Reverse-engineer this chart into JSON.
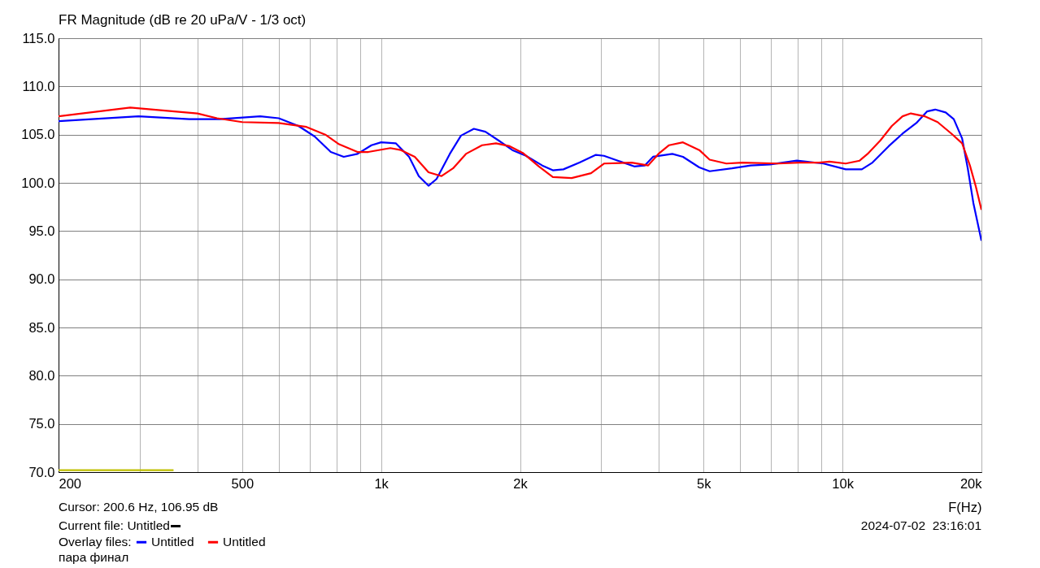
{
  "chart_data": {
    "type": "line",
    "title": "FR Magnitude (dB re 20 uPa/V - 1/3 oct)",
    "xlabel": "F(Hz)",
    "legend_title": "Overlay files:",
    "legend": "bottom left",
    "grid": true,
    "log": "x",
    "xlim": [
      200,
      20000
    ],
    "xticks": [
      200,
      {
        "value": 300,
        "label": null
      },
      {
        "value": 400,
        "label": null
      },
      500,
      {
        "value": 600,
        "label": null
      },
      {
        "value": 700,
        "label": null
      },
      {
        "value": 800,
        "label": null
      },
      {
        "value": 900,
        "label": null
      },
      {
        "value": 1000,
        "label": "1k"
      },
      {
        "value": 2000,
        "label": "2k"
      },
      {
        "value": 3000,
        "label": null
      },
      {
        "value": 4000,
        "label": null
      },
      {
        "value": 5000,
        "label": "5k"
      },
      {
        "value": 6000,
        "label": null
      },
      {
        "value": 7000,
        "label": null
      },
      {
        "value": 8000,
        "label": null
      },
      {
        "value": 9000,
        "label": null
      },
      {
        "value": 10000,
        "label": "10k"
      },
      {
        "value": 20000,
        "label": "20k"
      }
    ],
    "ylim": [
      70,
      115
    ],
    "yticks": [
      {
        "value": 70,
        "label": "70.0"
      },
      {
        "value": 75,
        "label": "75.0"
      },
      {
        "value": 80,
        "label": "80.0"
      },
      {
        "value": 85,
        "label": "85.0"
      },
      {
        "value": 90,
        "label": "90.0"
      },
      {
        "value": 95,
        "label": "95.0"
      },
      {
        "value": 100,
        "label": "100.0"
      },
      {
        "value": 105,
        "label": "105.0"
      },
      {
        "value": 110,
        "label": "110.0"
      },
      {
        "value": 115,
        "label": "115.0"
      }
    ],
    "annotations": [
      "Cursor: 200.6 Hz, 106.95 dB",
      "Current file: Untitled",
      "пара финал",
      "2024-07-02  23:16:01"
    ],
    "series": [
      {
        "name": "Untitled",
        "color": "#0000ff",
        "x": [
          200,
          298,
          384,
          447,
          547,
          600,
          662,
          718,
          778,
          830,
          889,
          953,
          1000,
          1076,
          1150,
          1207,
          1267,
          1319,
          1409,
          1490,
          1589,
          1683,
          1796,
          1925,
          2061,
          2235,
          2356,
          2484,
          2692,
          2921,
          3041,
          3259,
          3537,
          3727,
          3884,
          4277,
          4510,
          4893,
          5152,
          5761,
          6326,
          6970,
          7960,
          9096,
          10160,
          11010,
          11610,
          12590,
          13490,
          14450,
          15240,
          15880,
          16730,
          17420,
          18160,
          18680,
          19210,
          20000
        ],
        "values": [
          106.4,
          106.9,
          106.6,
          106.6,
          106.9,
          106.7,
          105.9,
          104.8,
          103.2,
          102.7,
          103.0,
          103.9,
          104.2,
          104.1,
          102.7,
          100.7,
          99.7,
          100.4,
          103.0,
          104.9,
          105.6,
          105.3,
          104.4,
          103.4,
          102.8,
          101.8,
          101.3,
          101.4,
          102.1,
          102.9,
          102.8,
          102.3,
          101.7,
          101.8,
          102.7,
          103.0,
          102.7,
          101.6,
          101.2,
          101.5,
          101.8,
          101.9,
          102.3,
          102.0,
          101.4,
          101.4,
          102.1,
          103.8,
          105.1,
          106.2,
          107.4,
          107.6,
          107.3,
          106.6,
          104.6,
          101.5,
          97.9,
          94.0
        ]
      },
      {
        "name": "Untitled",
        "color": "#ff0000",
        "x": [
          200,
          286,
          400,
          441,
          500,
          600,
          689,
          757,
          811,
          889,
          938,
          1047,
          1104,
          1183,
          1267,
          1352,
          1432,
          1527,
          1655,
          1774,
          1900,
          2028,
          2198,
          2356,
          2588,
          2851,
          3041,
          3493,
          3791,
          3990,
          4208,
          4510,
          4893,
          5152,
          5600,
          6070,
          7250,
          8060,
          8890,
          9360,
          10160,
          10890,
          11330,
          12080,
          12790,
          13490,
          14060,
          15060,
          16070,
          17220,
          18160,
          18880,
          19450,
          20000
        ],
        "values": [
          106.9,
          107.8,
          107.2,
          106.7,
          106.3,
          106.2,
          105.8,
          105.0,
          104.0,
          103.2,
          103.2,
          103.6,
          103.4,
          102.7,
          101.1,
          100.7,
          101.5,
          103.0,
          103.9,
          104.1,
          103.8,
          103.1,
          101.7,
          100.6,
          100.5,
          101.0,
          102.0,
          102.1,
          101.8,
          103.0,
          103.9,
          104.2,
          103.4,
          102.4,
          102.0,
          102.1,
          102.0,
          102.1,
          102.1,
          102.2,
          102.0,
          102.3,
          103.0,
          104.4,
          105.9,
          106.9,
          107.2,
          106.9,
          106.3,
          105.1,
          104.1,
          101.8,
          99.6,
          97.2
        ]
      },
      {
        "color": "#c0c000",
        "x": [
          200,
          355
        ],
        "values": [
          70.2,
          70.2
        ]
      }
    ]
  }
}
